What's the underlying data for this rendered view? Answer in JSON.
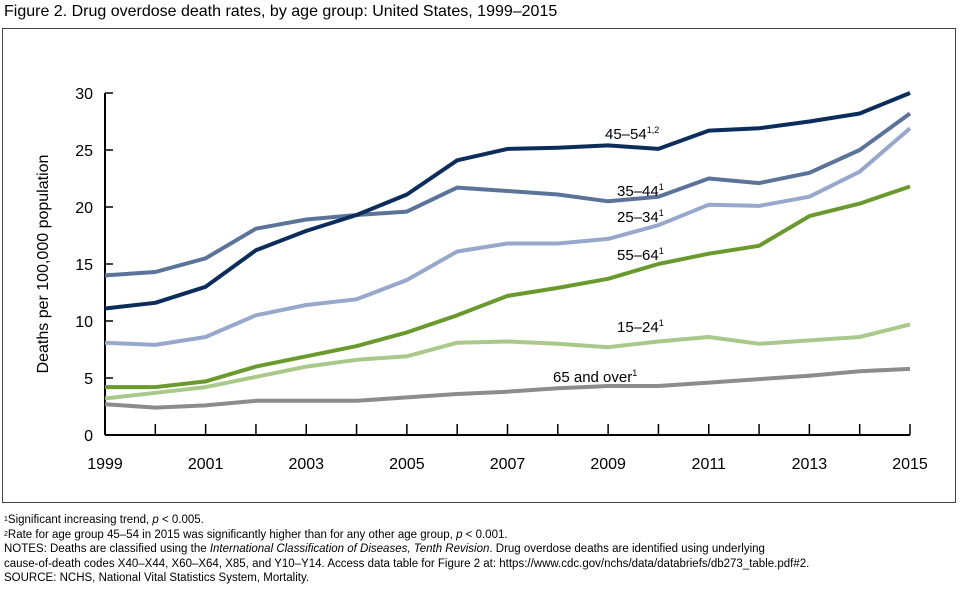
{
  "figure_title": "Figure 2. Drug overdose death rates, by age group: United States, 1999–2015",
  "chart_data": {
    "type": "line",
    "title": "Figure 2. Drug overdose death rates, by age group: United States, 1999–2015",
    "xlabel": "",
    "ylabel": "Deaths per 100,000 population",
    "x": [
      1999,
      2000,
      2001,
      2002,
      2003,
      2004,
      2005,
      2006,
      2007,
      2008,
      2009,
      2010,
      2011,
      2012,
      2013,
      2014,
      2015
    ],
    "x_tick_labels": [
      "1999",
      "2001",
      "2003",
      "2005",
      "2007",
      "2009",
      "2011",
      "2013",
      "2015"
    ],
    "y_ticks": [
      0,
      5,
      10,
      15,
      20,
      25,
      30
    ],
    "ylim": [
      0,
      30
    ],
    "xlim": [
      1999,
      2015
    ],
    "grid": false,
    "legend": "inline labels",
    "series": [
      {
        "name": "45–54",
        "label_sup": "1,2",
        "color": "#0b2d5b",
        "values": [
          11.1,
          11.6,
          13.0,
          16.2,
          17.9,
          19.3,
          21.1,
          24.1,
          25.1,
          25.2,
          25.4,
          25.1,
          26.7,
          26.9,
          27.5,
          28.2,
          30.0
        ]
      },
      {
        "name": "35–44",
        "label_sup": "1",
        "color": "#5c7399",
        "values": [
          14.0,
          14.3,
          15.5,
          18.1,
          18.9,
          19.3,
          19.6,
          21.7,
          21.4,
          21.1,
          20.5,
          20.9,
          22.5,
          22.1,
          23.0,
          25.0,
          28.2
        ]
      },
      {
        "name": "25–34",
        "label_sup": "1",
        "color": "#98a8cc",
        "values": [
          8.1,
          7.9,
          8.6,
          10.5,
          11.4,
          11.9,
          13.6,
          16.1,
          16.8,
          16.8,
          17.2,
          18.4,
          20.2,
          20.1,
          20.9,
          23.1,
          26.9
        ]
      },
      {
        "name": "55–64",
        "label_sup": "1",
        "color": "#6a9a2e",
        "values": [
          4.2,
          4.2,
          4.7,
          6.0,
          6.9,
          7.8,
          9.0,
          10.5,
          12.2,
          12.9,
          13.7,
          15.0,
          15.9,
          16.6,
          19.2,
          20.3,
          21.8
        ]
      },
      {
        "name": "15–24",
        "label_sup": "1",
        "color": "#a8c98a",
        "values": [
          3.2,
          3.7,
          4.2,
          5.1,
          6.0,
          6.6,
          6.9,
          8.1,
          8.2,
          8.0,
          7.7,
          8.2,
          8.6,
          8.0,
          8.3,
          8.6,
          9.7
        ]
      },
      {
        "name": "65 and over",
        "label_sup": "1",
        "color": "#8c8c8c",
        "values": [
          2.7,
          2.4,
          2.6,
          3.0,
          3.0,
          3.0,
          3.3,
          3.6,
          3.8,
          4.1,
          4.3,
          4.3,
          4.6,
          4.9,
          5.2,
          5.6,
          5.8
        ]
      }
    ]
  },
  "footnotes": {
    "note1_text": "Significant increasing trend, ",
    "note1_p": "p",
    "note1_tail": " < 0.005.",
    "note2_text": "Rate for age group 45–54 in 2015 was significantly higher than for any other age group, ",
    "note2_p": "p",
    "note2_tail": " < 0.001.",
    "notes_prefix": "NOTES: Deaths are classified using the ",
    "notes_italic": "International Classification of Diseases, Tenth Revision",
    "notes_suffix": ". Drug overdose deaths are identified using underlying",
    "notes_line2": "cause-of-death codes X40–X44, X60–X64, X85, and Y10–Y14. Access data table for Figure 2 at: https://www.cdc.gov/nchs/data/databriefs/db273_table.pdf#2.",
    "source": "SOURCE: NCHS, National Vital Statistics System, Mortality."
  }
}
